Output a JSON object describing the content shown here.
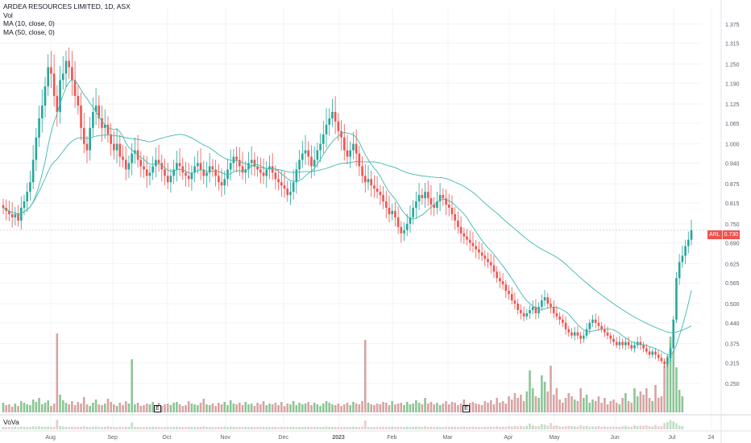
{
  "legend": {
    "title": "ARDEA RESOURCES LIMITED, 1D, ASX",
    "vol": "Vol",
    "ma10": "MA (10, close, 0)",
    "ma50": "MA (50, close, 0)"
  },
  "indicator_label": "VoVa",
  "last_price": {
    "symbol": "ARL",
    "value": "0.730"
  },
  "earnings_badges": [
    "E",
    "E"
  ],
  "colors": {
    "up": "#26a69a",
    "down": "#ef5350",
    "up_vol": "#7fbf8a",
    "down_vol": "#d39a9a",
    "ma_line": "#3fb8b0",
    "grid": "#f0f3fa",
    "axis_text": "#5d606b"
  },
  "chart_data": {
    "type": "candlestick",
    "title": "ARDEA RESOURCES LIMITED, 1D, ASX",
    "y_axis_ticks": [
      "1.375",
      "1.315",
      "1.250",
      "1.190",
      "1.125",
      "1.065",
      "1.000",
      "0.940",
      "0.875",
      "0.815",
      "0.750",
      "0.690",
      "0.625",
      "0.565",
      "0.500",
      "0.440",
      "0.375",
      "0.315",
      "0.250"
    ],
    "ylim": [
      0.21,
      1.4
    ],
    "x_axis_ticks": [
      "Aug",
      "Sep",
      "Oct",
      "Nov",
      "Dec",
      "2023",
      "Feb",
      "Mar",
      "Apr",
      "May",
      "Jun",
      "Jul",
      "24"
    ],
    "last_close": 0.73,
    "close_series": [
      0.8,
      0.79,
      0.78,
      0.77,
      0.78,
      0.76,
      0.8,
      0.82,
      0.85,
      0.88,
      0.95,
      1.02,
      1.08,
      1.12,
      1.18,
      1.24,
      1.22,
      1.15,
      1.1,
      1.2,
      1.22,
      1.26,
      1.24,
      1.2,
      1.15,
      1.12,
      1.05,
      1.0,
      0.98,
      1.05,
      1.1,
      1.12,
      1.08,
      1.05,
      1.06,
      1.03,
      1.0,
      0.98,
      1.0,
      0.96,
      0.95,
      0.92,
      0.94,
      0.97,
      0.98,
      0.95,
      0.93,
      0.92,
      0.9,
      0.91,
      0.93,
      0.95,
      0.94,
      0.92,
      0.9,
      0.88,
      0.9,
      0.92,
      0.94,
      0.93,
      0.91,
      0.9,
      0.89,
      0.91,
      0.93,
      0.94,
      0.92,
      0.9,
      0.91,
      0.93,
      0.92,
      0.9,
      0.88,
      0.87,
      0.89,
      0.92,
      0.94,
      0.96,
      0.95,
      0.93,
      0.91,
      0.92,
      0.94,
      0.95,
      0.93,
      0.92,
      0.91,
      0.9,
      0.92,
      0.93,
      0.91,
      0.89,
      0.88,
      0.87,
      0.86,
      0.84,
      0.85,
      0.88,
      0.92,
      0.95,
      0.97,
      0.98,
      0.96,
      0.93,
      0.95,
      0.98,
      1.0,
      1.03,
      1.06,
      1.08,
      1.1,
      1.07,
      1.04,
      1.02,
      0.98,
      0.96,
      0.98,
      1.0,
      0.97,
      0.93,
      0.9,
      0.88,
      0.89,
      0.87,
      0.86,
      0.85,
      0.84,
      0.82,
      0.8,
      0.78,
      0.79,
      0.77,
      0.74,
      0.72,
      0.73,
      0.75,
      0.77,
      0.8,
      0.82,
      0.84,
      0.83,
      0.85,
      0.83,
      0.81,
      0.8,
      0.82,
      0.84,
      0.83,
      0.81,
      0.8,
      0.78,
      0.76,
      0.74,
      0.72,
      0.71,
      0.7,
      0.69,
      0.68,
      0.67,
      0.66,
      0.65,
      0.64,
      0.63,
      0.62,
      0.6,
      0.58,
      0.57,
      0.56,
      0.54,
      0.53,
      0.51,
      0.5,
      0.48,
      0.47,
      0.46,
      0.47,
      0.48,
      0.49,
      0.47,
      0.49,
      0.51,
      0.52,
      0.5,
      0.49,
      0.47,
      0.46,
      0.45,
      0.44,
      0.42,
      0.41,
      0.4,
      0.41,
      0.4,
      0.39,
      0.4,
      0.42,
      0.44,
      0.45,
      0.44,
      0.43,
      0.42,
      0.41,
      0.4,
      0.39,
      0.38,
      0.37,
      0.38,
      0.37,
      0.38,
      0.37,
      0.36,
      0.37,
      0.38,
      0.37,
      0.36,
      0.35,
      0.34,
      0.35,
      0.34,
      0.33,
      0.32,
      0.31,
      0.33,
      0.36,
      0.45,
      0.58,
      0.63,
      0.65,
      0.68,
      0.7,
      0.73
    ],
    "ma10_label": "MA (10, close, 0)",
    "ma50_label": "MA (50, close, 0)",
    "volume_series": [
      0.12,
      0.09,
      0.1,
      0.07,
      0.11,
      0.08,
      0.14,
      0.12,
      0.1,
      0.09,
      0.16,
      0.13,
      0.18,
      0.1,
      0.12,
      0.15,
      0.08,
      0.11,
      0.98,
      0.22,
      0.15,
      0.12,
      0.1,
      0.14,
      0.09,
      0.13,
      0.11,
      0.19,
      0.1,
      0.08,
      0.12,
      0.16,
      0.1,
      0.09,
      0.11,
      0.17,
      0.13,
      0.1,
      0.08,
      0.12,
      0.09,
      0.14,
      0.11,
      0.66,
      0.1,
      0.12,
      0.08,
      0.09,
      0.11,
      0.1,
      0.13,
      0.09,
      0.12,
      0.08,
      0.1,
      0.11,
      0.09,
      0.12,
      0.13,
      0.1,
      0.08,
      0.09,
      0.14,
      0.11,
      0.1,
      0.09,
      0.12,
      0.17,
      0.1,
      0.09,
      0.11,
      0.08,
      0.12,
      0.1,
      0.13,
      0.09,
      0.15,
      0.11,
      0.1,
      0.12,
      0.09,
      0.13,
      0.1,
      0.11,
      0.08,
      0.12,
      0.1,
      0.14,
      0.09,
      0.11,
      0.1,
      0.12,
      0.09,
      0.13,
      0.08,
      0.11,
      0.1,
      0.14,
      0.09,
      0.12,
      0.1,
      0.11,
      0.13,
      0.09,
      0.12,
      0.1,
      0.08,
      0.11,
      0.14,
      0.12,
      0.1,
      0.09,
      0.11,
      0.08,
      0.1,
      0.12,
      0.09,
      0.13,
      0.11,
      0.1,
      0.14,
      0.9,
      0.12,
      0.1,
      0.09,
      0.11,
      0.1,
      0.13,
      0.12,
      0.09,
      0.14,
      0.1,
      0.11,
      0.12,
      0.09,
      0.13,
      0.1,
      0.11,
      0.15,
      0.12,
      0.1,
      0.18,
      0.11,
      0.13,
      0.1,
      0.12,
      0.09,
      0.11,
      0.14,
      0.1,
      0.13,
      0.12,
      0.09,
      0.11,
      0.16,
      0.1,
      0.12,
      0.13,
      0.11,
      0.1,
      0.09,
      0.14,
      0.12,
      0.15,
      0.1,
      0.18,
      0.12,
      0.14,
      0.11,
      0.2,
      0.16,
      0.24,
      0.18,
      0.22,
      0.14,
      0.26,
      0.52,
      0.3,
      0.2,
      0.18,
      0.46,
      0.38,
      0.26,
      0.58,
      0.22,
      0.3,
      0.16,
      0.12,
      0.18,
      0.24,
      0.2,
      0.16,
      0.14,
      0.3,
      0.18,
      0.22,
      0.12,
      0.16,
      0.14,
      0.2,
      0.12,
      0.18,
      0.1,
      0.14,
      0.16,
      0.12,
      0.1,
      0.18,
      0.24,
      0.14,
      0.12,
      0.3,
      0.2,
      0.26,
      0.22,
      0.3,
      0.18,
      0.14,
      0.34,
      0.18,
      0.2,
      0.58,
      0.7,
      0.94,
      0.76,
      0.56,
      0.28,
      0.2
    ]
  }
}
